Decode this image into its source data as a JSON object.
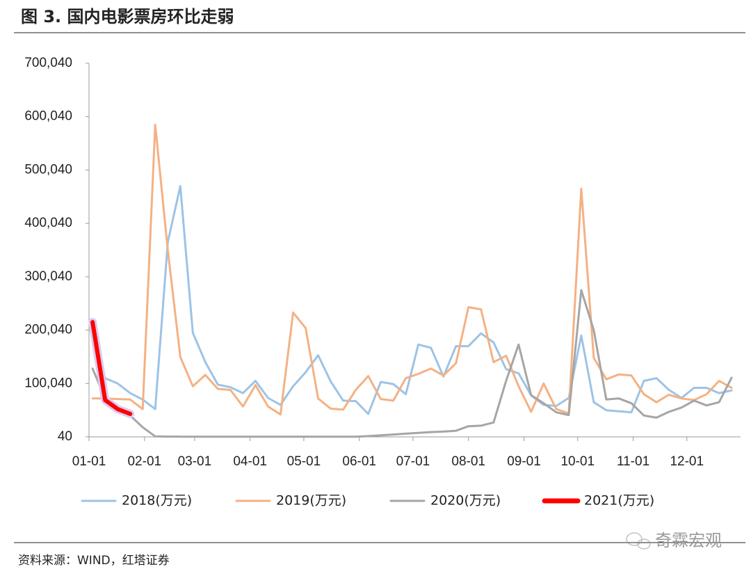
{
  "chart_data": {
    "type": "line",
    "title": "图 3. 国内电影票房环比走弱",
    "source": "资料来源：WIND，红塔证券",
    "watermark": "奇霖宏观",
    "x": [
      "01-03",
      "01-10",
      "01-17",
      "01-24",
      "01-31",
      "02-07",
      "02-14",
      "02-21",
      "02-28",
      "03-07",
      "03-14",
      "03-21",
      "03-28",
      "04-04",
      "04-11",
      "04-18",
      "04-25",
      "05-02",
      "05-09",
      "05-16",
      "05-23",
      "05-30",
      "06-06",
      "06-13",
      "06-20",
      "06-27",
      "07-04",
      "07-11",
      "07-18",
      "07-25",
      "08-01",
      "08-08",
      "08-15",
      "08-22",
      "08-29",
      "09-05",
      "09-12",
      "09-19",
      "09-26",
      "10-03",
      "10-10",
      "10-17",
      "10-24",
      "10-31",
      "11-07",
      "11-14",
      "11-21",
      "11-28",
      "12-05",
      "12-12",
      "12-19",
      "12-26"
    ],
    "series": [
      {
        "name": "2018(万元)",
        "color": "#9dc3e6",
        "values": [
          180000,
          110000,
          100000,
          82000,
          70000,
          52000,
          365000,
          470000,
          195000,
          140000,
          98000,
          93000,
          82000,
          105000,
          73000,
          60000,
          95000,
          121000,
          153000,
          104000,
          68000,
          67000,
          43000,
          103000,
          99000,
          80000,
          173000,
          167000,
          113000,
          170000,
          170000,
          194000,
          177000,
          127000,
          119000,
          78000,
          60000,
          58000,
          73000,
          190000,
          65000,
          50000,
          48000,
          46000,
          105000,
          110000,
          88000,
          73000,
          92000,
          92000,
          82000,
          87000
        ]
      },
      {
        "name": "2019(万元)",
        "color": "#f4b183",
        "values": [
          72000,
          72000,
          71000,
          70000,
          52000,
          585000,
          350000,
          150000,
          95000,
          116000,
          90000,
          88000,
          57000,
          97000,
          57000,
          42000,
          233000,
          204000,
          72000,
          53000,
          51000,
          88000,
          114000,
          71000,
          68000,
          110000,
          118000,
          128000,
          115000,
          138000,
          243000,
          239000,
          140000,
          152000,
          95000,
          47000,
          100000,
          52000,
          44000,
          465000,
          148000,
          108000,
          117000,
          115000,
          80000,
          65000,
          79000,
          72000,
          69000,
          80000,
          105000,
          92000
        ]
      },
      {
        "name": "2020(万元)",
        "color": "#a5a5a5",
        "values": [
          128000,
          72000,
          55000,
          40000,
          18000,
          1000,
          500,
          400,
          400,
          400,
          400,
          400,
          400,
          300,
          300,
          300,
          300,
          300,
          300,
          300,
          300,
          400,
          1500,
          3000,
          4500,
          6000,
          7500,
          9000,
          10000,
          11500,
          20000,
          21000,
          27000,
          105000,
          173000,
          78000,
          63000,
          46000,
          41000,
          275000,
          200000,
          70000,
          72000,
          63000,
          40000,
          36000,
          47000,
          55000,
          68000,
          59000,
          65000,
          111000
        ]
      },
      {
        "name": "2021(万元)",
        "color": "#ff0000",
        "values": [
          215000,
          69000,
          52000,
          43000,
          null,
          null,
          null,
          null,
          null,
          null,
          null,
          null,
          null,
          null,
          null,
          null,
          null,
          null,
          null,
          null,
          null,
          null,
          null,
          null,
          null,
          null,
          null,
          null,
          null,
          null,
          null,
          null,
          null,
          null,
          null,
          null,
          null,
          null,
          null,
          null,
          null,
          null,
          null,
          null,
          null,
          null,
          null,
          null,
          null,
          null,
          null,
          null
        ]
      }
    ],
    "xlim": [
      "01-01",
      "12-31"
    ],
    "xticks": [
      "01-01",
      "02-01",
      "03-01",
      "04-01",
      "05-01",
      "06-01",
      "07-01",
      "08-01",
      "09-01",
      "10-01",
      "11-01",
      "12-01"
    ],
    "ylim": [
      40,
      700040
    ],
    "yticks": [
      40,
      {
        "value": 100040,
        "label": "100,040"
      },
      {
        "value": 200040,
        "label": "200,040"
      },
      {
        "value": 300040,
        "label": "300,040"
      },
      {
        "value": 400040,
        "label": "400,040"
      },
      {
        "value": 500040,
        "label": "500,040"
      },
      {
        "value": 600040,
        "label": "600,040"
      },
      {
        "value": 700040,
        "label": "700,040"
      }
    ]
  }
}
